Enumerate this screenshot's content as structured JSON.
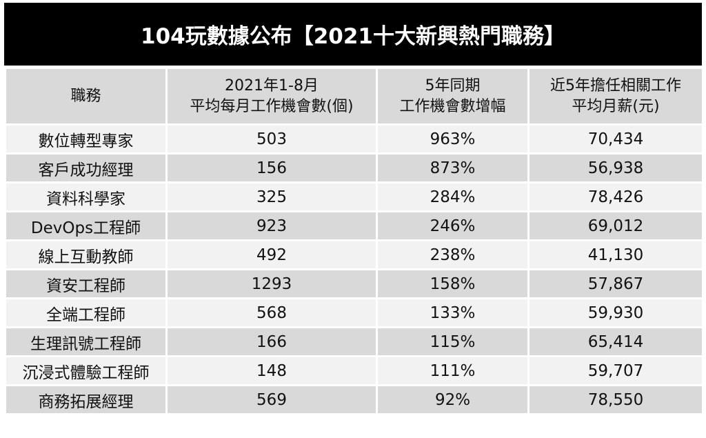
{
  "header": {
    "title": "104玩數據公布【2021十大新興熱門職務】"
  },
  "table": {
    "columns": [
      [
        "職務"
      ],
      [
        "2021年1-8月",
        "平均每月工作機會數(個)"
      ],
      [
        "5年同期",
        "工作機會數增幅"
      ],
      [
        "近5年擔任相關工作",
        "平均月薪(元)"
      ]
    ],
    "rows": [
      [
        "數位轉型專家",
        "503",
        "963%",
        "70,434"
      ],
      [
        "客戶成功經理",
        "156",
        "873%",
        "56,938"
      ],
      [
        "資料科學家",
        "325",
        "284%",
        "78,426"
      ],
      [
        "DevOps工程師",
        "923",
        "246%",
        "69,012"
      ],
      [
        "線上互動教師",
        "492",
        "238%",
        "41,130"
      ],
      [
        "資安工程師",
        "1293",
        "158%",
        "57,867"
      ],
      [
        "全端工程師",
        "568",
        "133%",
        "59,930"
      ],
      [
        "生理訊號工程師",
        "166",
        "115%",
        "65,414"
      ],
      [
        "沉浸式體驗工程師",
        "148",
        "111%",
        "59,707"
      ],
      [
        "商務拓展經理",
        "569",
        "92%",
        "78,550"
      ]
    ]
  }
}
